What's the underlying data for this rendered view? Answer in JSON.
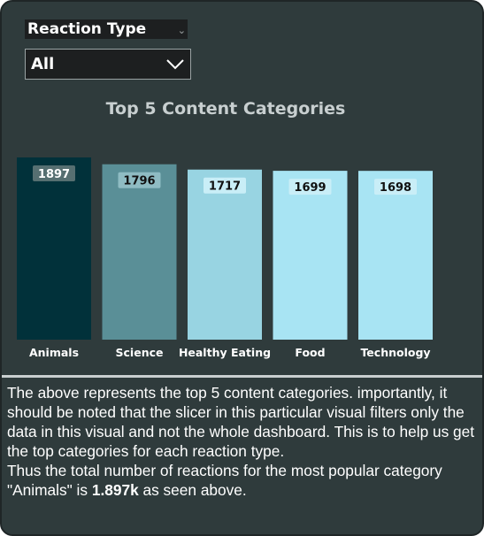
{
  "slicer": {
    "header": "Reaction Type",
    "selected": "All"
  },
  "chart_data": {
    "type": "bar",
    "title": "Top 5 Content Categories",
    "categories": [
      "Animals",
      "Science",
      "Healthy Eating",
      "Food",
      "Technology"
    ],
    "values": [
      1897,
      1796,
      1717,
      1699,
      1698
    ],
    "colors": [
      "#01313a",
      "#5a8f97",
      "#98d4e2",
      "#a8e4f3",
      "#a8e4f3"
    ],
    "xlabel": "",
    "ylabel": ""
  },
  "description": {
    "text_before": "The above represents the top 5 content categories. importantly, it should be noted that the slicer in this particular visual filters only the data in this visual and not the whole dashboard. This is to help us get the top categories for each reaction type.",
    "text_line2_before": "Thus the total number of reactions for the most popular category \"Animals\" is ",
    "highlight": "1.897k",
    "text_after": "  as seen above."
  }
}
